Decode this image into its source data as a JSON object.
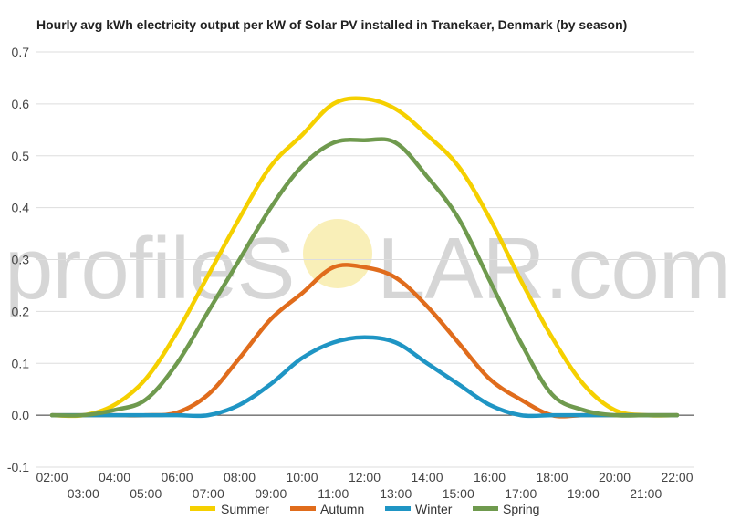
{
  "chart_data": {
    "type": "line",
    "title": "Hourly avg kWh electricity output per kW of Solar PV installed in Tranekaer, Denmark (by season)",
    "xlabel": "",
    "ylabel": "",
    "ylim": [
      -0.1,
      0.7
    ],
    "yticks": [
      -0.1,
      0.0,
      0.1,
      0.2,
      0.3,
      0.4,
      0.5,
      0.6,
      0.7
    ],
    "ytick_labels": [
      "-0.1",
      "0.0",
      "0.1",
      "0.2",
      "0.3",
      "0.4",
      "0.5",
      "0.6",
      "0.7"
    ],
    "x": [
      "02:00",
      "03:00",
      "04:00",
      "05:00",
      "06:00",
      "07:00",
      "08:00",
      "09:00",
      "10:00",
      "11:00",
      "12:00",
      "13:00",
      "14:00",
      "15:00",
      "16:00",
      "17:00",
      "18:00",
      "19:00",
      "20:00",
      "21:00",
      "22:00"
    ],
    "grid": true,
    "legend_position": "bottom",
    "series": [
      {
        "name": "Summer",
        "color": "#f5d000",
        "values": [
          0.0,
          0.0,
          0.02,
          0.07,
          0.16,
          0.27,
          0.38,
          0.48,
          0.54,
          0.6,
          0.61,
          0.59,
          0.54,
          0.48,
          0.38,
          0.26,
          0.15,
          0.06,
          0.01,
          0.0,
          0.0
        ]
      },
      {
        "name": "Autumn",
        "color": "#e06c1c",
        "values": [
          0.0,
          0.0,
          0.0,
          0.0,
          0.005,
          0.04,
          0.11,
          0.185,
          0.235,
          0.285,
          0.285,
          0.265,
          0.21,
          0.14,
          0.07,
          0.03,
          0.0,
          0.0,
          0.0,
          0.0,
          0.0
        ]
      },
      {
        "name": "Winter",
        "color": "#1f95c4",
        "values": [
          0.0,
          0.0,
          0.0,
          0.0,
          0.0,
          0.0,
          0.02,
          0.06,
          0.11,
          0.14,
          0.15,
          0.14,
          0.1,
          0.06,
          0.02,
          0.0,
          0.0,
          0.0,
          0.0,
          0.0,
          0.0
        ]
      },
      {
        "name": "Spring",
        "color": "#6f9a4e",
        "values": [
          0.0,
          0.0,
          0.01,
          0.03,
          0.1,
          0.2,
          0.3,
          0.4,
          0.48,
          0.525,
          0.53,
          0.525,
          0.46,
          0.38,
          0.26,
          0.14,
          0.04,
          0.01,
          0.0,
          0.0,
          0.0
        ]
      }
    ]
  },
  "watermark": {
    "text_left": "profileS",
    "text_right": "LAR.com",
    "sun_color": "#f7eaa0"
  }
}
